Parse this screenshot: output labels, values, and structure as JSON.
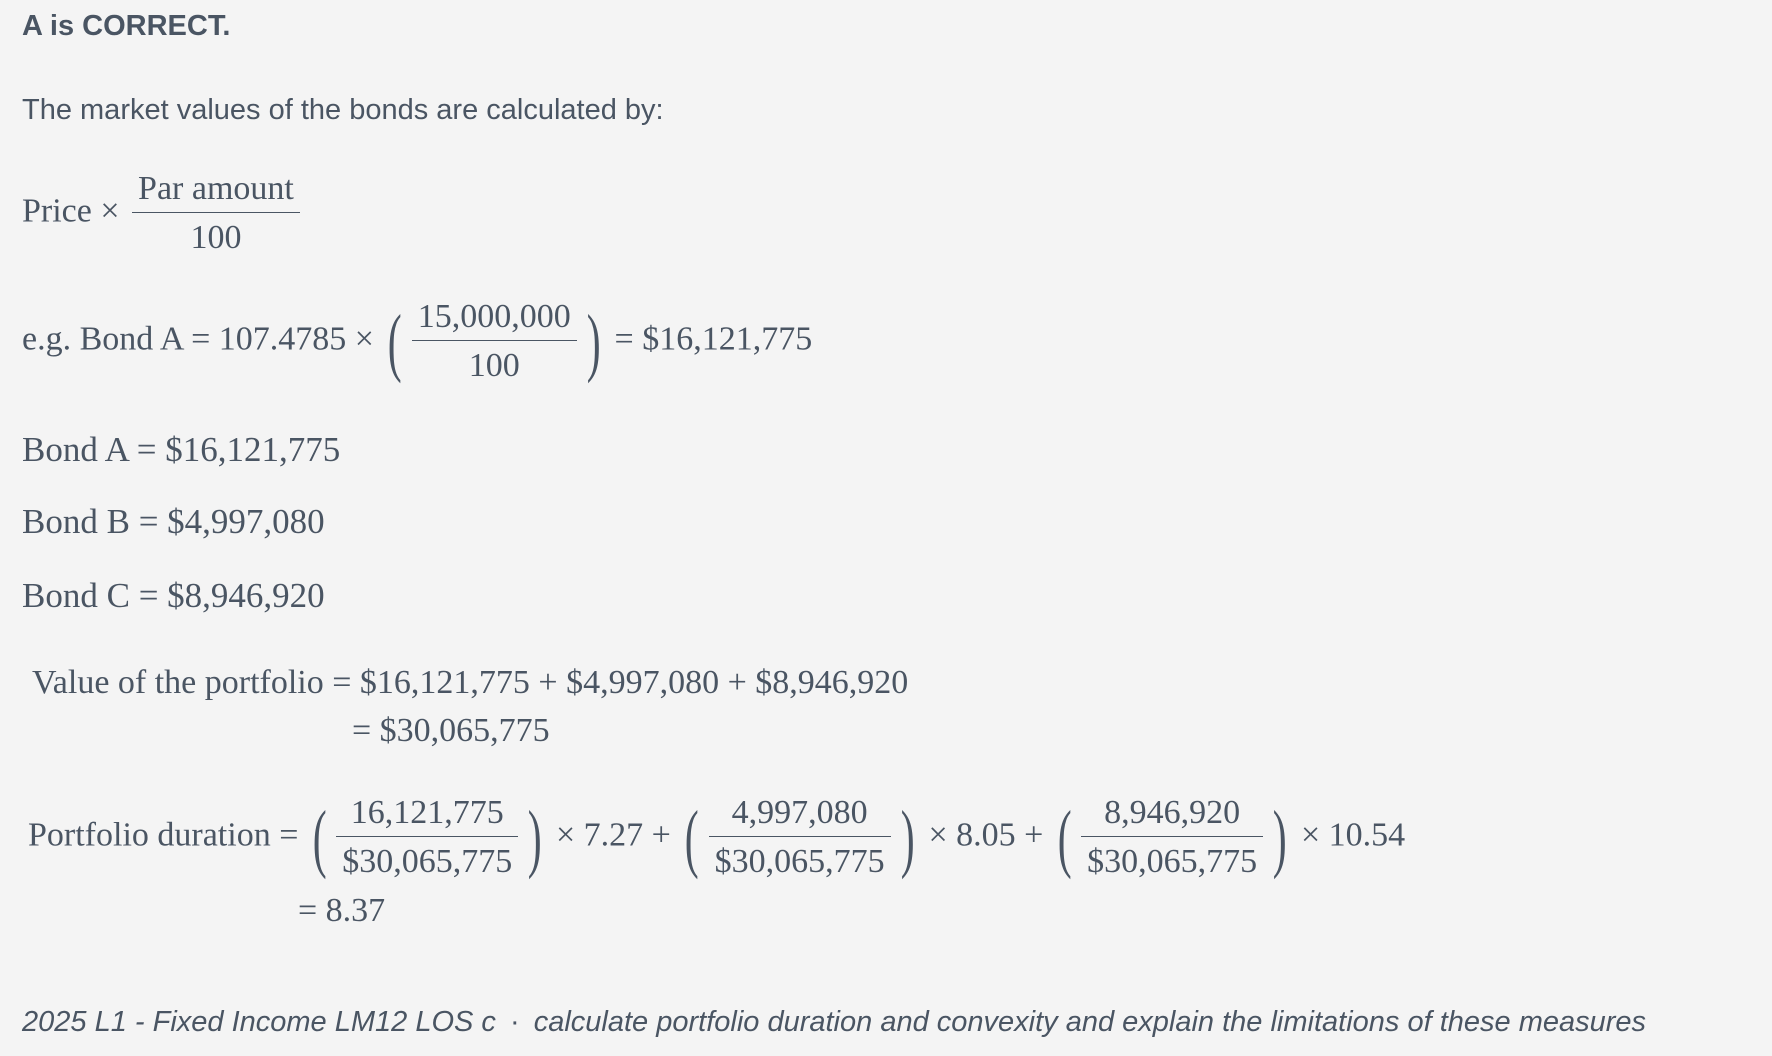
{
  "verdict": "A is CORRECT.",
  "intro": "The market values of the bonds are calculated by:",
  "price_formula": {
    "lhs": "Price ×",
    "numerator": "Par amount",
    "denominator": "100"
  },
  "example": {
    "lhs": "e.g. Bond A = 107.4785 ×",
    "open_paren": "(",
    "numerator": "15,000,000",
    "denominator": "100",
    "close_paren": ")",
    "result": "= $16,121,775"
  },
  "bonds": [
    "Bond A = $16,121,775",
    "Bond B = $4,997,080",
    "Bond C = $8,946,920"
  ],
  "portfolio_value": {
    "line1": "Value of the portfolio = $16,121,775 + $4,997,080 + $8,946,920",
    "line2": "= $30,065,775"
  },
  "duration": {
    "label": "Portfolio duration =",
    "terms": [
      {
        "numerator": "16,121,775",
        "denominator": "$30,065,775",
        "multiplier": "× 7.27 +"
      },
      {
        "numerator": "4,997,080",
        "denominator": "$30,065,775",
        "multiplier": "× 8.05 +"
      },
      {
        "numerator": "8,946,920",
        "denominator": "$30,065,775",
        "multiplier": "× 10.54"
      }
    ],
    "result": "= 8.37"
  },
  "footer": {
    "tag": "2025 L1 - Fixed Income LM12 LOS c",
    "separator": "·",
    "description": "calculate portfolio duration and convexity and explain the limitations of these measures"
  }
}
